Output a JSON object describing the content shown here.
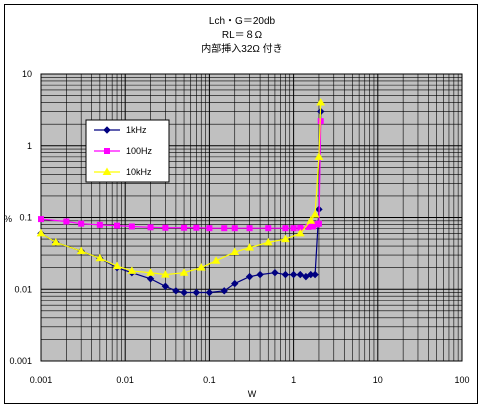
{
  "chart_data": {
    "type": "line",
    "title_lines": [
      "Lch・G＝20db",
      "RL＝８Ω",
      "内部挿入32Ω 付き"
    ],
    "xlabel": "W",
    "ylabel": "%",
    "x_scale": "log",
    "y_scale": "log",
    "xlim": [
      0.001,
      100
    ],
    "ylim": [
      0.001,
      10
    ],
    "x_tick_labels": [
      "0.001",
      "0.01",
      "0.1",
      "1",
      "10",
      "100"
    ],
    "y_tick_labels": [
      "0.001",
      "0.01",
      "0.1",
      "1",
      "10"
    ],
    "grid": true,
    "legend_position": "left",
    "series": [
      {
        "name": "1kHz",
        "color": "#000080",
        "marker": "diamond",
        "x": [
          0.001,
          0.0015,
          0.003,
          0.005,
          0.008,
          0.012,
          0.02,
          0.03,
          0.04,
          0.05,
          0.07,
          0.1,
          0.15,
          0.2,
          0.3,
          0.4,
          0.6,
          0.8,
          1.0,
          1.2,
          1.4,
          1.6,
          1.8,
          2.0,
          2.1
        ],
        "y": [
          0.06,
          0.045,
          0.034,
          0.027,
          0.02,
          0.017,
          0.014,
          0.011,
          0.0095,
          0.009,
          0.009,
          0.009,
          0.0095,
          0.012,
          0.015,
          0.016,
          0.017,
          0.016,
          0.016,
          0.016,
          0.015,
          0.016,
          0.016,
          0.13,
          3.0
        ]
      },
      {
        "name": "100Hz",
        "color": "#ff00ff",
        "marker": "square",
        "x": [
          0.001,
          0.002,
          0.003,
          0.005,
          0.008,
          0.012,
          0.02,
          0.03,
          0.05,
          0.07,
          0.1,
          0.15,
          0.2,
          0.3,
          0.5,
          0.8,
          1.0,
          1.2,
          1.5,
          1.7,
          1.9,
          2.0,
          2.1
        ],
        "y": [
          0.095,
          0.088,
          0.082,
          0.079,
          0.077,
          0.075,
          0.073,
          0.072,
          0.072,
          0.072,
          0.071,
          0.071,
          0.071,
          0.071,
          0.071,
          0.071,
          0.071,
          0.072,
          0.074,
          0.075,
          0.08,
          0.082,
          2.2
        ]
      },
      {
        "name": "10kHz",
        "color": "#ffff00",
        "marker": "triangle",
        "x": [
          0.001,
          0.0015,
          0.003,
          0.005,
          0.008,
          0.012,
          0.02,
          0.03,
          0.05,
          0.08,
          0.12,
          0.2,
          0.3,
          0.5,
          0.8,
          1.2,
          1.6,
          1.8,
          2.0,
          2.1
        ],
        "y": [
          0.06,
          0.045,
          0.034,
          0.027,
          0.021,
          0.018,
          0.017,
          0.016,
          0.017,
          0.02,
          0.025,
          0.033,
          0.038,
          0.045,
          0.05,
          0.06,
          0.09,
          0.11,
          0.7,
          4.0
        ]
      }
    ]
  }
}
